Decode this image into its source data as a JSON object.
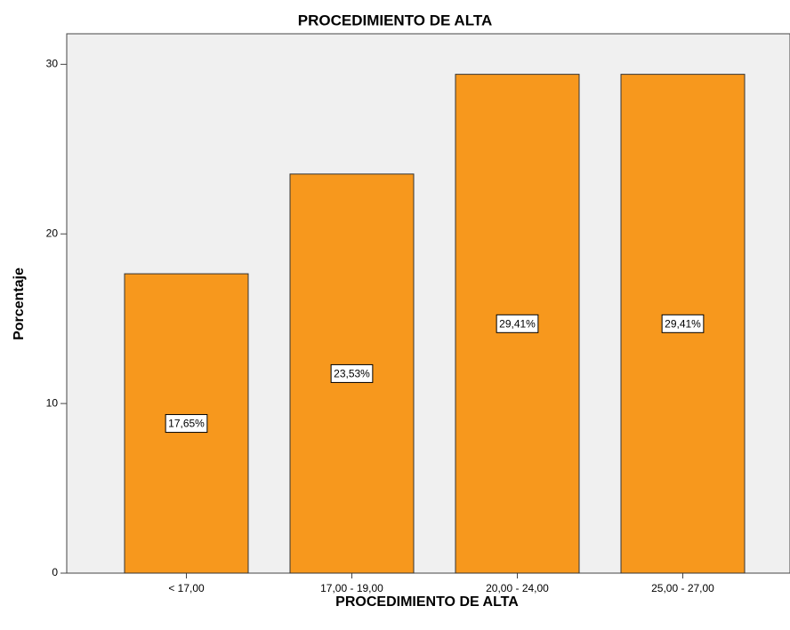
{
  "chart_data": {
    "type": "bar",
    "title": "PROCEDIMIENTO DE ALTA",
    "x_label": "PROCEDIMIENTO DE ALTA",
    "y_label": "Porcentaje",
    "categories": [
      "< 17,00",
      "17,00 - 19,00",
      "20,00 - 24,00",
      "25,00 - 27,00"
    ],
    "values": [
      17.65,
      23.53,
      29.41,
      29.41
    ],
    "value_labels": [
      "17,65%",
      "23,53%",
      "29,41%",
      "29,41%"
    ],
    "color": "#f7981d",
    "ylim": [
      0,
      31.8
    ],
    "yticks": [
      0,
      10,
      20,
      30
    ],
    "grid": false
  }
}
